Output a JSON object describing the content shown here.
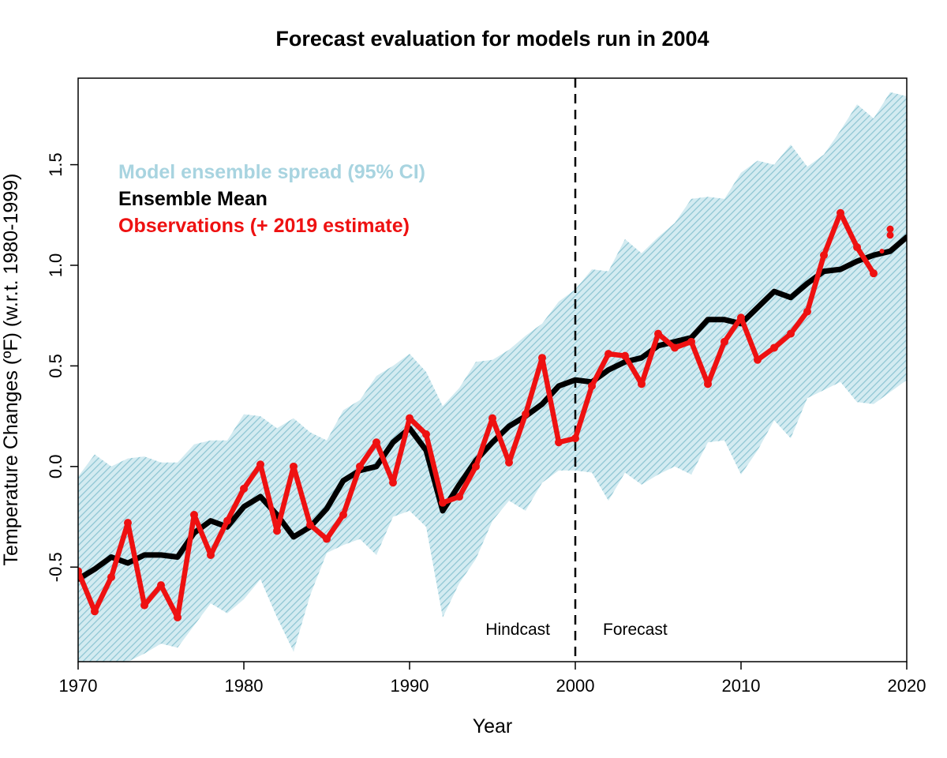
{
  "chart_data": {
    "type": "line",
    "title": "Forecast evaluation for models run in 2004",
    "xlabel": "Year",
    "ylabel": "Temperature Changes (ºF) (w.r.t. 1980-1999)",
    "xlim": [
      1970,
      2020
    ],
    "ylim": [
      -0.97,
      1.93
    ],
    "x_ticks": [
      1970,
      1980,
      1990,
      2000,
      2010,
      2020
    ],
    "y_ticks": [
      -0.5,
      0.0,
      0.5,
      1.0,
      1.5
    ],
    "x_tick_labels": [
      "1970",
      "1980",
      "1990",
      "2000",
      "2010",
      "2020"
    ],
    "y_tick_labels": [
      "-0.5",
      "0.0",
      "0.5",
      "1.0",
      "1.5"
    ],
    "grid": false,
    "legend_position": "top-left",
    "legend": [
      {
        "label": "Model ensemble spread (95% CI)",
        "color": "#a8d4e0"
      },
      {
        "label": "Ensemble Mean",
        "color": "#000000"
      },
      {
        "label": "Observations (+ 2019 estimate)",
        "color": "#ee1111"
      }
    ],
    "annotations": {
      "divider_year": 2000,
      "left_text": "Hindcast",
      "right_text": "Forecast"
    },
    "band": {
      "name": "Model ensemble spread (95% CI)",
      "color": "#8cc4d2",
      "x": [
        1970,
        1971,
        1972,
        1973,
        1974,
        1975,
        1976,
        1977,
        1978,
        1979,
        1980,
        1981,
        1982,
        1983,
        1984,
        1985,
        1986,
        1987,
        1988,
        1989,
        1990,
        1991,
        1992,
        1993,
        1994,
        1995,
        1996,
        1997,
        1998,
        1999,
        2000,
        2001,
        2002,
        2003,
        2004,
        2005,
        2006,
        2007,
        2008,
        2009,
        2010,
        2011,
        2012,
        2013,
        2014,
        2015,
        2016,
        2017,
        2018,
        2019,
        2020
      ],
      "upper": [
        -0.05,
        0.06,
        0.0,
        0.04,
        0.05,
        0.02,
        0.02,
        0.11,
        0.13,
        0.13,
        0.26,
        0.25,
        0.19,
        0.24,
        0.17,
        0.13,
        0.28,
        0.33,
        0.45,
        0.5,
        0.56,
        0.47,
        0.3,
        0.39,
        0.52,
        0.53,
        0.58,
        0.65,
        0.71,
        0.82,
        0.88,
        0.98,
        0.97,
        1.13,
        1.06,
        1.14,
        1.21,
        1.33,
        1.34,
        1.33,
        1.46,
        1.52,
        1.5,
        1.6,
        1.49,
        1.55,
        1.67,
        1.8,
        1.73,
        1.86,
        1.84
      ],
      "lower": [
        -0.97,
        -0.97,
        -0.97,
        -0.97,
        -0.93,
        -0.88,
        -0.9,
        -0.79,
        -0.68,
        -0.73,
        -0.66,
        -0.56,
        -0.75,
        -0.92,
        -0.64,
        -0.43,
        -0.39,
        -0.36,
        -0.44,
        -0.25,
        -0.22,
        -0.3,
        -0.75,
        -0.58,
        -0.46,
        -0.27,
        -0.17,
        -0.22,
        -0.08,
        -0.02,
        -0.02,
        -0.03,
        -0.17,
        -0.03,
        -0.09,
        -0.04,
        0.0,
        -0.04,
        0.12,
        0.13,
        -0.04,
        0.08,
        0.23,
        0.14,
        0.34,
        0.38,
        0.42,
        0.32,
        0.31,
        0.37,
        0.43
      ]
    },
    "series": [
      {
        "name": "Ensemble Mean",
        "color": "#000000",
        "x": [
          1970,
          1971,
          1972,
          1973,
          1974,
          1975,
          1976,
          1977,
          1978,
          1979,
          1980,
          1981,
          1982,
          1983,
          1984,
          1985,
          1986,
          1987,
          1988,
          1989,
          1990,
          1991,
          1992,
          1993,
          1994,
          1995,
          1996,
          1997,
          1998,
          1999,
          2000,
          2001,
          2002,
          2003,
          2004,
          2005,
          2006,
          2007,
          2008,
          2009,
          2010,
          2011,
          2012,
          2013,
          2014,
          2015,
          2016,
          2017,
          2018,
          2019,
          2020
        ],
        "values": [
          -0.56,
          -0.51,
          -0.45,
          -0.48,
          -0.44,
          -0.44,
          -0.45,
          -0.33,
          -0.27,
          -0.3,
          -0.2,
          -0.15,
          -0.24,
          -0.35,
          -0.3,
          -0.21,
          -0.07,
          -0.02,
          0.0,
          0.12,
          0.19,
          0.08,
          -0.22,
          -0.09,
          0.03,
          0.12,
          0.2,
          0.25,
          0.31,
          0.4,
          0.43,
          0.42,
          0.48,
          0.52,
          0.54,
          0.6,
          0.62,
          0.64,
          0.73,
          0.73,
          0.71,
          0.79,
          0.87,
          0.84,
          0.91,
          0.97,
          0.98,
          1.02,
          1.05,
          1.07,
          1.14
        ]
      },
      {
        "name": "Observations (+ 2019 estimate)",
        "color": "#ee1111",
        "x": [
          1970,
          1971,
          1972,
          1973,
          1974,
          1975,
          1976,
          1977,
          1978,
          1979,
          1980,
          1981,
          1982,
          1983,
          1984,
          1985,
          1986,
          1987,
          1988,
          1989,
          1990,
          1991,
          1992,
          1993,
          1994,
          1995,
          1996,
          1997,
          1998,
          1999,
          2000,
          2001,
          2002,
          2003,
          2004,
          2005,
          2006,
          2007,
          2008,
          2009,
          2010,
          2011,
          2012,
          2013,
          2014,
          2015,
          2016,
          2017,
          2018
        ],
        "values": [
          -0.52,
          -0.72,
          -0.55,
          -0.28,
          -0.69,
          -0.59,
          -0.75,
          -0.24,
          -0.44,
          -0.27,
          -0.11,
          0.01,
          -0.32,
          0.0,
          -0.29,
          -0.36,
          -0.24,
          0.0,
          0.12,
          -0.08,
          0.24,
          0.16,
          -0.18,
          -0.15,
          0.0,
          0.24,
          0.02,
          0.26,
          0.54,
          0.12,
          0.14,
          0.4,
          0.56,
          0.55,
          0.41,
          0.66,
          0.59,
          0.62,
          0.41,
          0.62,
          0.74,
          0.53,
          0.59,
          0.66,
          0.77,
          1.05,
          1.26,
          1.09,
          0.96
        ]
      }
    ],
    "estimate_2019": {
      "x": 2019,
      "values": [
        1.15,
        1.18
      ]
    }
  }
}
